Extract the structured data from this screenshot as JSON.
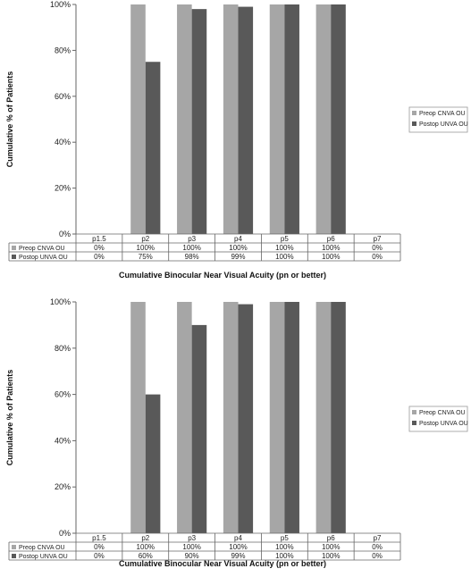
{
  "chart_data": [
    {
      "type": "bar",
      "categories": [
        "p1.5",
        "p2",
        "p3",
        "p4",
        "p5",
        "p6",
        "p7"
      ],
      "series": [
        {
          "name": "Preop CNVA OU",
          "values": [
            0,
            100,
            100,
            100,
            100,
            100,
            0
          ],
          "labels": [
            "0%",
            "100%",
            "100%",
            "100%",
            "100%",
            "100%",
            "0%"
          ],
          "color": "#a6a6a6"
        },
        {
          "name": "Postop UNVA OU",
          "values": [
            0,
            75,
            98,
            99,
            100,
            100,
            0
          ],
          "labels": [
            "0%",
            "75%",
            "98%",
            "99%",
            "100%",
            "100%",
            "0%"
          ],
          "color": "#595959"
        }
      ],
      "xlabel": "Cumulative Binocular Near Visual Acuity (pn or better)",
      "ylabel": "Cumulative % of Patients",
      "ylim": [
        0,
        100
      ],
      "yticks": [
        "0%",
        "20%",
        "40%",
        "60%",
        "80%",
        "100%"
      ],
      "legend_position": "right",
      "grid": false
    },
    {
      "type": "bar",
      "categories": [
        "p1.5",
        "p2",
        "p3",
        "p4",
        "p5",
        "p6",
        "p7"
      ],
      "series": [
        {
          "name": "Preop CNVA OU",
          "values": [
            0,
            100,
            100,
            100,
            100,
            100,
            0
          ],
          "labels": [
            "0%",
            "100%",
            "100%",
            "100%",
            "100%",
            "100%",
            "0%"
          ],
          "color": "#a6a6a6"
        },
        {
          "name": "Postop UNVA OU",
          "values": [
            0,
            60,
            90,
            99,
            100,
            100,
            0
          ],
          "labels": [
            "0%",
            "60%",
            "90%",
            "99%",
            "100%",
            "100%",
            "0%"
          ],
          "color": "#595959"
        }
      ],
      "xlabel": "Cumulative Binocular Near Visual Acuity (pn or better)",
      "ylabel": "Cumulative % of Patients",
      "ylim": [
        0,
        100
      ],
      "yticks": [
        "0%",
        "20%",
        "40%",
        "60%",
        "80%",
        "100%"
      ],
      "legend_position": "right",
      "grid": false
    }
  ]
}
